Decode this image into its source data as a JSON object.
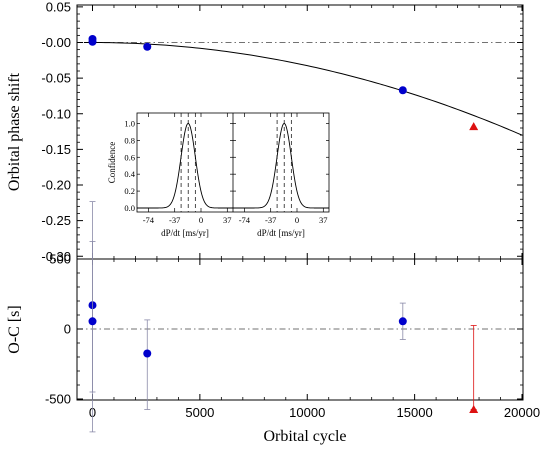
{
  "chart_data": [
    {
      "type": "scatter",
      "panel": "top",
      "ylabel": "Orbital phase shift",
      "xlabel": "",
      "xlim": [
        -400,
        20000
      ],
      "ylim": [
        -0.31,
        0.05
      ],
      "yticks": [
        0.05,
        0.0,
        -0.05,
        -0.1,
        -0.15,
        -0.2,
        -0.25,
        -0.3
      ],
      "ytick_labels": [
        "0.05",
        "-0.00",
        "-0.05",
        "-0.10",
        "-0.15",
        "-0.20",
        "-0.25",
        "-0.30"
      ],
      "reference_line_y": 0,
      "model_curve": {
        "form": "quadratic",
        "y_at_x_20000": -0.13
      },
      "series": [
        {
          "marker": "circle",
          "color": "#0000cc",
          "x": [
            0,
            0,
            2550,
            14450
          ],
          "y": [
            0.005,
            0.001,
            -0.006,
            -0.067
          ]
        },
        {
          "marker": "triangle",
          "color": "#dd1111",
          "x": [
            17750
          ],
          "y": [
            -0.118
          ]
        }
      ],
      "grid": false
    },
    {
      "type": "scatter",
      "panel": "bottom",
      "ylabel": "O-C [s]",
      "xlabel": "Orbital cycle",
      "xlim": [
        -400,
        20000
      ],
      "ylim": [
        -950,
        850
      ],
      "xticks": [
        0,
        5000,
        10000,
        15000,
        20000
      ],
      "xtick_labels": [
        "0",
        "5000",
        "10000",
        "15000",
        "20000"
      ],
      "yticks": [
        500,
        0,
        -500
      ],
      "ytick_labels": [
        "500",
        "0",
        "-500"
      ],
      "reference_line_y": 0,
      "series": [
        {
          "marker": "circle",
          "color": "#0000cc",
          "x": [
            0,
            0,
            2550,
            14450
          ],
          "y": [
            170,
            55,
            -175,
            55
          ],
          "err_low": [
            620,
            790,
            400,
            130
          ],
          "err_high": [
            740,
            570,
            240,
            130
          ]
        },
        {
          "marker": "triangle",
          "color": "#dd1111",
          "x": [
            17750
          ],
          "y": [
            -575
          ],
          "err_low": [
            0
          ],
          "err_high": [
            600
          ]
        }
      ],
      "grid": false
    },
    {
      "type": "line",
      "panel": "inset-left",
      "ylabel": "Confidence",
      "xlabel": "dP/dt [ms/yr]",
      "xticks": [
        -74,
        -37,
        0,
        37
      ],
      "xtick_labels": [
        "-74",
        "-37",
        "0",
        "37"
      ],
      "yticks": [
        0.0,
        0.2,
        0.4,
        0.6,
        0.8,
        1.0
      ],
      "ytick_labels": [
        "0.0",
        "0.2",
        "0.4",
        "0.6",
        "0.8",
        "1.0"
      ],
      "ylim": [
        0,
        1.1
      ],
      "peak_x": -18,
      "sigma": 10,
      "dashed_lines_x": [
        -28,
        -18,
        -8
      ]
    },
    {
      "type": "line",
      "panel": "inset-right",
      "ylabel": "",
      "xlabel": "dP/dt [ms/yr]",
      "xticks": [
        -74,
        -37,
        0,
        37
      ],
      "xtick_labels": [
        "-74",
        "-37",
        "0",
        "37"
      ],
      "ylim": [
        0,
        1.1
      ],
      "peak_x": -18,
      "sigma": 10,
      "dashed_lines_x": [
        -28,
        -18,
        -8
      ]
    }
  ]
}
